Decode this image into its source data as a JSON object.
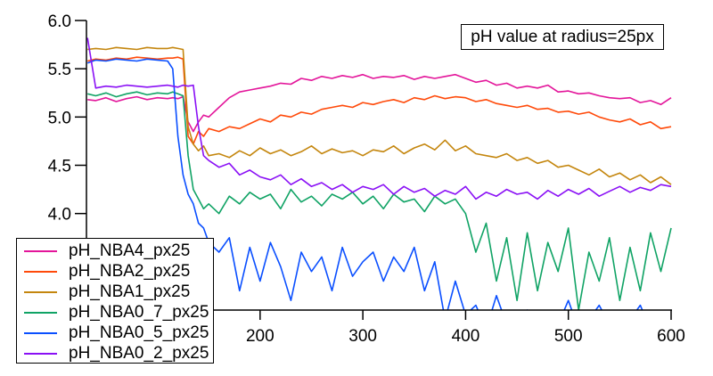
{
  "chart_data": {
    "type": "line",
    "title": "pH value at radius=25px",
    "xlabel": "",
    "ylabel": "",
    "xlim": [
      31,
      600
    ],
    "ylim": [
      3.0,
      6.0
    ],
    "grid": false,
    "legend_position": "bottom-left",
    "x_ticks": [
      200,
      300,
      400,
      500,
      600
    ],
    "x_tick_labels": [
      "200",
      "300",
      "400",
      "500",
      "600"
    ],
    "y_ticks": [
      4.0,
      4.5,
      5.0,
      5.5,
      6.0
    ],
    "y_tick_labels": [
      "4.0",
      "4.5",
      "5.0",
      "5.5",
      "6.0"
    ],
    "x": [
      32,
      40,
      50,
      60,
      70,
      80,
      90,
      100,
      110,
      115,
      120,
      125,
      130,
      135,
      140,
      145,
      150,
      160,
      170,
      180,
      190,
      200,
      210,
      220,
      230,
      240,
      250,
      260,
      270,
      280,
      290,
      300,
      310,
      320,
      330,
      340,
      350,
      360,
      370,
      380,
      390,
      400,
      410,
      420,
      430,
      440,
      450,
      460,
      470,
      480,
      490,
      500,
      510,
      520,
      530,
      540,
      550,
      560,
      570,
      580,
      590,
      600
    ],
    "series": [
      {
        "name": "pH_NBA4_px25",
        "color": "#e3159a",
        "values": [
          5.18,
          5.17,
          5.2,
          5.16,
          5.19,
          5.21,
          5.18,
          5.2,
          5.19,
          5.2,
          5.19,
          5.21,
          4.95,
          4.85,
          4.95,
          5.02,
          5.0,
          5.1,
          5.2,
          5.26,
          5.28,
          5.3,
          5.32,
          5.35,
          5.34,
          5.4,
          5.38,
          5.42,
          5.4,
          5.43,
          5.41,
          5.44,
          5.4,
          5.42,
          5.41,
          5.43,
          5.39,
          5.42,
          5.4,
          5.42,
          5.44,
          5.4,
          5.36,
          5.38,
          5.33,
          5.35,
          5.3,
          5.32,
          5.3,
          5.33,
          5.26,
          5.27,
          5.24,
          5.25,
          5.22,
          5.2,
          5.19,
          5.2,
          5.15,
          5.17,
          5.13,
          5.2
        ]
      },
      {
        "name": "pH_NBA2_px25",
        "color": "#ff4a0a",
        "values": [
          5.58,
          5.6,
          5.59,
          5.61,
          5.6,
          5.62,
          5.61,
          5.6,
          5.61,
          5.61,
          5.62,
          5.6,
          4.8,
          4.72,
          4.85,
          4.8,
          4.88,
          4.85,
          4.9,
          4.88,
          4.93,
          4.98,
          4.95,
          5.02,
          5.0,
          5.05,
          5.03,
          5.08,
          5.1,
          5.12,
          5.1,
          5.15,
          5.13,
          5.16,
          5.18,
          5.15,
          5.2,
          5.18,
          5.22,
          5.19,
          5.21,
          5.2,
          5.16,
          5.18,
          5.14,
          5.12,
          5.1,
          5.12,
          5.08,
          5.09,
          5.05,
          5.06,
          5.03,
          5.05,
          5.0,
          4.97,
          4.95,
          4.98,
          4.92,
          4.95,
          4.88,
          4.9
        ]
      },
      {
        "name": "pH_NBA1_px25",
        "color": "#c4860e",
        "values": [
          5.7,
          5.71,
          5.7,
          5.72,
          5.71,
          5.7,
          5.72,
          5.71,
          5.71,
          5.72,
          5.71,
          5.7,
          4.9,
          4.72,
          4.65,
          4.7,
          4.6,
          4.62,
          4.58,
          4.65,
          4.6,
          4.68,
          4.62,
          4.66,
          4.6,
          4.64,
          4.7,
          4.62,
          4.67,
          4.63,
          4.65,
          4.6,
          4.66,
          4.64,
          4.7,
          4.62,
          4.68,
          4.72,
          4.66,
          4.76,
          4.65,
          4.7,
          4.62,
          4.6,
          4.58,
          4.62,
          4.55,
          4.58,
          4.52,
          4.55,
          4.48,
          4.5,
          4.45,
          4.4,
          4.46,
          4.38,
          4.42,
          4.35,
          4.4,
          4.32,
          4.38,
          4.3
        ]
      },
      {
        "name": "pH_NBA0_7_px25",
        "color": "#10a365",
        "values": [
          5.24,
          5.22,
          5.25,
          5.21,
          5.24,
          5.26,
          5.23,
          5.25,
          5.24,
          5.26,
          5.24,
          5.22,
          4.6,
          4.25,
          4.15,
          4.05,
          4.1,
          4.0,
          4.18,
          4.1,
          4.22,
          4.15,
          4.2,
          4.05,
          4.25,
          4.12,
          4.18,
          4.08,
          4.2,
          4.15,
          4.22,
          4.1,
          4.18,
          4.05,
          4.2,
          4.12,
          4.15,
          4.02,
          4.18,
          4.1,
          4.15,
          4.0,
          3.6,
          3.9,
          3.3,
          3.75,
          3.1,
          3.8,
          3.2,
          3.7,
          3.4,
          3.85,
          3.0,
          3.6,
          3.3,
          3.75,
          3.1,
          3.65,
          3.2,
          3.8,
          3.4,
          3.85
        ]
      },
      {
        "name": "pH_NBA0_5_px25",
        "color": "#0a4fff",
        "values": [
          5.56,
          5.59,
          5.58,
          5.6,
          5.59,
          5.58,
          5.6,
          5.59,
          5.58,
          5.5,
          4.8,
          4.4,
          4.2,
          4.1,
          3.9,
          3.85,
          3.7,
          3.6,
          3.75,
          3.2,
          3.65,
          3.3,
          3.7,
          3.45,
          3.1,
          3.6,
          3.4,
          3.55,
          3.2,
          3.65,
          3.35,
          3.5,
          3.6,
          3.3,
          3.55,
          3.4,
          3.65,
          3.2,
          3.5,
          2.9,
          3.3,
          2.95,
          3.05,
          2.8,
          3.15,
          2.85,
          2.9,
          3.0,
          2.8,
          2.9,
          2.85,
          3.1,
          2.8,
          2.9,
          3.05,
          2.85,
          2.8,
          2.9,
          3.05,
          2.8,
          2.9,
          3.0
        ]
      },
      {
        "name": "pH_NBA0_2_px25",
        "color": "#8a10f5",
        "values": [
          5.82,
          5.3,
          5.32,
          5.31,
          5.33,
          5.32,
          5.31,
          5.32,
          5.33,
          5.32,
          5.31,
          5.33,
          5.32,
          5.33,
          4.9,
          4.6,
          4.55,
          4.48,
          4.52,
          4.4,
          4.45,
          4.38,
          4.35,
          4.4,
          4.3,
          4.36,
          4.28,
          4.32,
          4.25,
          4.3,
          4.22,
          4.28,
          4.25,
          4.3,
          4.2,
          4.28,
          4.22,
          4.26,
          4.18,
          4.24,
          4.2,
          4.28,
          4.15,
          4.22,
          4.18,
          4.25,
          4.2,
          4.22,
          4.15,
          4.24,
          4.18,
          4.25,
          4.2,
          4.26,
          4.18,
          4.23,
          4.28,
          4.22,
          4.27,
          4.24,
          4.3,
          4.28
        ]
      }
    ]
  }
}
